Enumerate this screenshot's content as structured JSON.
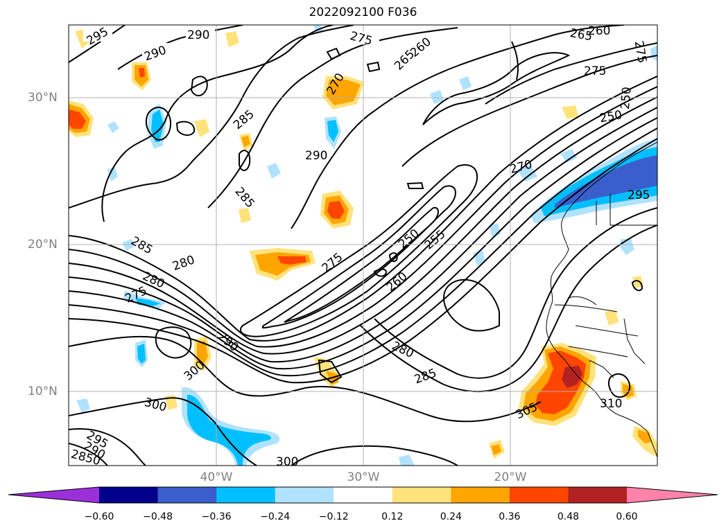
{
  "title": "2022092100 F036",
  "lat_labels": [
    "30°N",
    "20°N",
    "10°N"
  ],
  "lon_labels": [
    "40°W",
    "30°W",
    "20°W"
  ],
  "colorbar": {
    "ticks": [
      "−0.60",
      "−0.48",
      "−0.36",
      "−0.24",
      "−0.12",
      "0.12",
      "0.24",
      "0.36",
      "0.48",
      "0.60"
    ],
    "colors": [
      "#9b30d9",
      "#00008b",
      "#3a5fcd",
      "#00bfff",
      "#b0e2ff",
      "#ffffff",
      "#ffe27a",
      "#ffa500",
      "#ff4500",
      "#b22222",
      "#ff82ab"
    ]
  },
  "contour_labels": [
    "295",
    "290",
    "290",
    "275",
    "265",
    "260",
    "265",
    "260",
    "275",
    "275",
    "270",
    "285",
    "290",
    "285",
    "250",
    "250",
    "270",
    "295",
    "285",
    "280",
    "275",
    "280",
    "275",
    "250",
    "255",
    "260",
    "290",
    "300",
    "280",
    "285",
    "300",
    "305",
    "310",
    "295",
    "290",
    "2850",
    "300"
  ]
}
